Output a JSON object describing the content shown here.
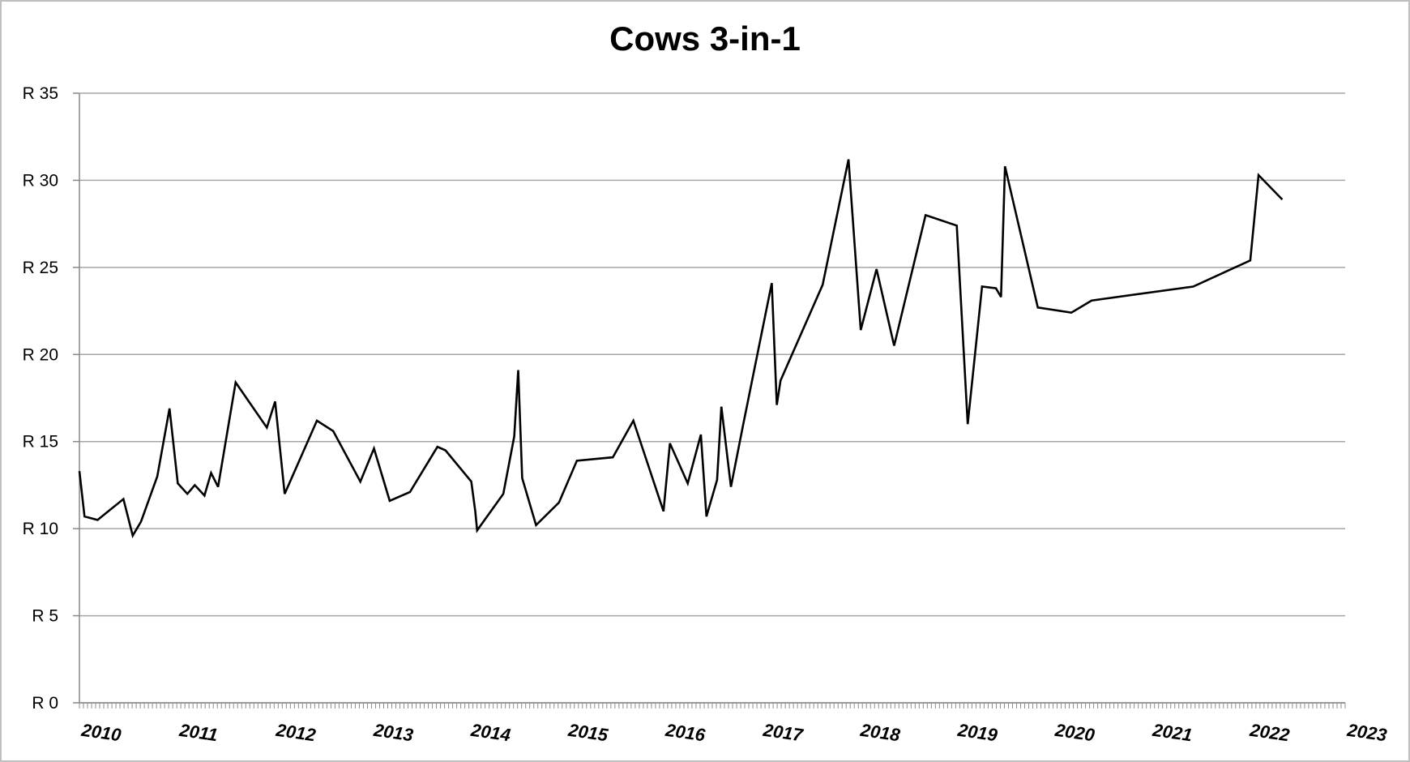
{
  "chart_data": {
    "type": "line",
    "title": "Cows 3-in-1",
    "xlabel": "",
    "ylabel": "",
    "ylim": [
      0,
      35
    ],
    "xlim": [
      "2010-01-01",
      "2023-01-01"
    ],
    "y_ticks": [
      "R 0",
      "R 5",
      "R 10",
      "R 15",
      "R 20",
      "R 25",
      "R 30",
      "R 35"
    ],
    "x_ticks": [
      "2010",
      "2011",
      "2012",
      "2013",
      "2014",
      "2015",
      "2016",
      "2017",
      "2018",
      "2019",
      "2020",
      "2021",
      "2022",
      "2023"
    ],
    "grid": true,
    "legend": "none",
    "line_color": "#000000",
    "grid_color": "#a6a6a6",
    "series": [
      {
        "x": [
          "2010-01-01",
          "2010-01-20",
          "2010-03-10",
          "2010-06-15",
          "2010-07-20",
          "2010-08-20",
          "2010-10-20",
          "2010-12-05",
          "2011-01-05",
          "2011-02-10",
          "2011-03-10",
          "2011-04-15",
          "2011-05-10",
          "2011-06-05",
          "2011-08-10",
          "2011-12-05",
          "2012-01-05",
          "2012-02-10",
          "2012-06-10",
          "2012-08-10",
          "2012-11-20",
          "2013-01-10",
          "2013-03-10",
          "2013-05-25",
          "2013-09-05",
          "2013-10-05",
          "2014-01-10",
          "2014-01-25",
          "2014-02-01",
          "2014-05-10",
          "2014-06-20",
          "2014-07-05",
          "2014-07-20",
          "2014-09-10",
          "2014-12-05",
          "2015-02-10",
          "2015-06-25",
          "2015-09-10",
          "2016-01-01",
          "2016-01-25",
          "2016-04-01",
          "2016-05-20",
          "2016-06-10",
          "2016-07-20",
          "2016-08-05",
          "2016-09-10",
          "2016-10-25",
          "2017-02-10",
          "2017-03-01",
          "2017-03-15",
          "2017-08-20",
          "2017-11-25",
          "2018-01-10",
          "2018-03-10",
          "2018-05-15",
          "2018-09-10",
          "2019-01-05",
          "2019-02-15",
          "2019-04-10",
          "2019-06-01",
          "2019-06-20",
          "2019-07-05",
          "2019-11-05",
          "2020-03-10",
          "2020-05-25",
          "2021-06-10",
          "2022-01-10",
          "2022-02-10",
          "2022-05-10"
        ],
        "y": [
          13.3,
          10.7,
          10.5,
          11.7,
          9.6,
          10.4,
          13,
          16.9,
          12.6,
          12,
          12.5,
          11.9,
          13.2,
          12.4,
          18.4,
          15.8,
          17.3,
          12,
          16.2,
          15.6,
          12.7,
          14.6,
          11.6,
          12.1,
          14.7,
          14.5,
          12.7,
          11,
          9.9,
          12,
          15.3,
          19.1,
          12.9,
          10.2,
          11.5,
          13.9,
          14.1,
          16.2,
          11,
          14.9,
          12.6,
          15.4,
          10.7,
          12.8,
          17,
          12.4,
          15.9,
          24.1,
          17.1,
          18.5,
          24,
          31.2,
          21.4,
          24.9,
          20.5,
          28,
          27.4,
          16,
          23.9,
          23.8,
          23.3,
          30.8,
          22.7,
          22.4,
          23.1,
          23.9,
          25.4,
          30.3,
          28.9
        ]
      }
    ]
  }
}
